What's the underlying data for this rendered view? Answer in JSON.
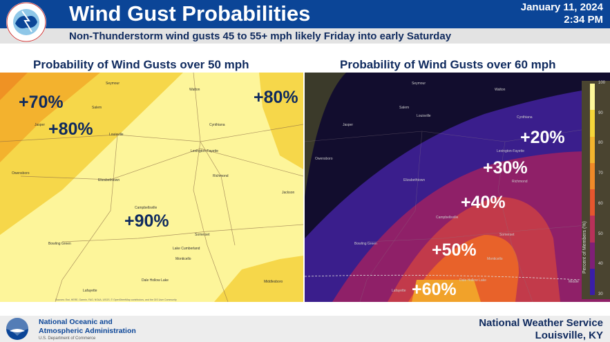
{
  "header": {
    "title": "Wind Gust Probabilities",
    "date": "January 11, 2024",
    "time": "2:34 PM",
    "subtitle": "Non-Thunderstorm wind gusts 45 to 55+ mph likely Friday into early Saturday",
    "logo_text": "NATIONAL WEATHER SERVICE"
  },
  "left_map": {
    "title": "Probability of Wind Gusts over 50 mph",
    "labels": [
      "+70%",
      "+80%",
      "+80%",
      "+90%"
    ],
    "cities": [
      "Seymour",
      "Salem",
      "Jasper",
      "Louisville",
      "Owensboro",
      "Elizabethtown",
      "Lexington-Fayette",
      "Cynthiana",
      "Walton",
      "Richmond",
      "Jackson",
      "Campbellsville",
      "Bowling Green",
      "Somerset",
      "Lake Cumberland",
      "Monticello",
      "Dale Hollow Lake",
      "Lafayette",
      "Middlesboro"
    ],
    "attribution": "Sources: Esri, HERE, Garmin, FAO, NOAA, USGS, © OpenStreetMap contributors, and the GIS User Community"
  },
  "right_map": {
    "title": "Probability of Wind Gusts over 60 mph",
    "labels": [
      "+20%",
      "+30%",
      "+40%",
      "+50%",
      "+60%"
    ],
    "cities": [
      "Seymour",
      "Salem",
      "Jasper",
      "Louisville",
      "Owensboro",
      "Elizabethtown",
      "Lexington-Fayette",
      "Cynthiana",
      "Walton",
      "Richmond",
      "Campbellsville",
      "Bowling Green",
      "Somerset",
      "Monticello",
      "Lafayette",
      "Dale Hollow Lake",
      "Middle"
    ],
    "legend": {
      "title": "Percent of Members (%)",
      "ticks": [
        "100",
        "90",
        "80",
        "70",
        "60",
        "50",
        "40",
        "30"
      ],
      "colors": [
        "#fdf79a",
        "#f5d63a",
        "#f3b52e",
        "#f08a28",
        "#e5562e",
        "#b8315a",
        "#7f1f78",
        "#3a1ea8"
      ]
    }
  },
  "footer": {
    "noaa_line1": "National Oceanic and",
    "noaa_line2": "Atmospheric Administration",
    "noaa_line3": "U.S. Department of Commerce",
    "noaa_logo_text": "NOAA",
    "office1": "National Weather Service",
    "office2": "Louisville, KY"
  },
  "colors": {
    "header_blue": "#0b4597",
    "text_navy": "#0f2a5e"
  }
}
